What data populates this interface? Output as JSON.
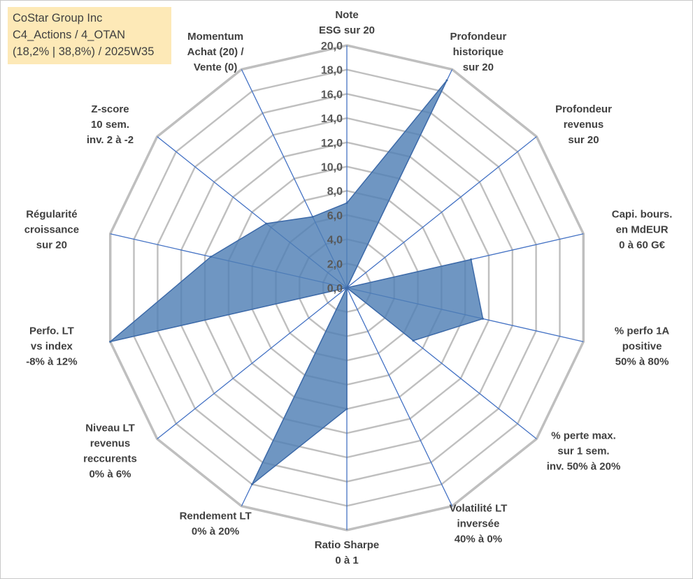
{
  "title": {
    "line1": "CoStar Group Inc",
    "line2": "C4_Actions / 4_OTAN",
    "line3": "(18,2% | 38,8%) / 2025W35"
  },
  "chart_data": {
    "type": "radar",
    "rmin": 0,
    "rmax": 20,
    "tick_step": 2,
    "grid": true,
    "ticks": [
      "0,0",
      "2,0",
      "4,0",
      "6,0",
      "8,0",
      "10,0",
      "12,0",
      "14,0",
      "16,0",
      "18,0",
      "20,0"
    ],
    "colors": {
      "fill": "#4f7fb5",
      "stroke": "#3d6aa8",
      "grid": "#bfbfbf",
      "spoke": "#4472c4"
    },
    "axes": [
      {
        "label": [
          "Note",
          "ESG sur 20"
        ],
        "value": 7.0
      },
      {
        "label": [
          "Profondeur",
          "historique",
          "sur 20"
        ],
        "value": 19.0
      },
      {
        "label": [
          "Profondeur",
          "revenus",
          "sur 20"
        ],
        "value": 0.0
      },
      {
        "label": [
          "Capi. bours.",
          "en MdEUR",
          "0 à 60 G€"
        ],
        "value": 10.5
      },
      {
        "label": [
          "% perfo 1A",
          "positive",
          "50% à 80%"
        ],
        "value": 11.5
      },
      {
        "label": [
          "% perte max.",
          "sur 1 sem.",
          "inv. 50% à 20%"
        ],
        "value": 7.0
      },
      {
        "label": [
          "Volatilité LT",
          "inversée",
          "40% à 0%"
        ],
        "value": 0.0
      },
      {
        "label": [
          "Ratio Sharpe",
          "0 à 1"
        ],
        "value": 10.0
      },
      {
        "label": [
          "Rendement LT",
          "0% à 20%"
        ],
        "value": 18.0
      },
      {
        "label": [
          "Niveau LT",
          "revenus",
          "reccurents",
          "0% à 6%"
        ],
        "value": 0.0
      },
      {
        "label": [
          "Perfo. LT",
          "vs index",
          "-8% à 12%"
        ],
        "value": 20.0
      },
      {
        "label": [
          "Régularité",
          "croissance",
          "sur 20"
        ],
        "value": 11.5
      },
      {
        "label": [
          "Z-score",
          "10 sem.",
          "inv. 2 à -2"
        ],
        "value": 8.5
      },
      {
        "label": [
          "Momentum",
          "Achat (20) /",
          "Vente (0)"
        ],
        "value": 6.5
      }
    ]
  }
}
